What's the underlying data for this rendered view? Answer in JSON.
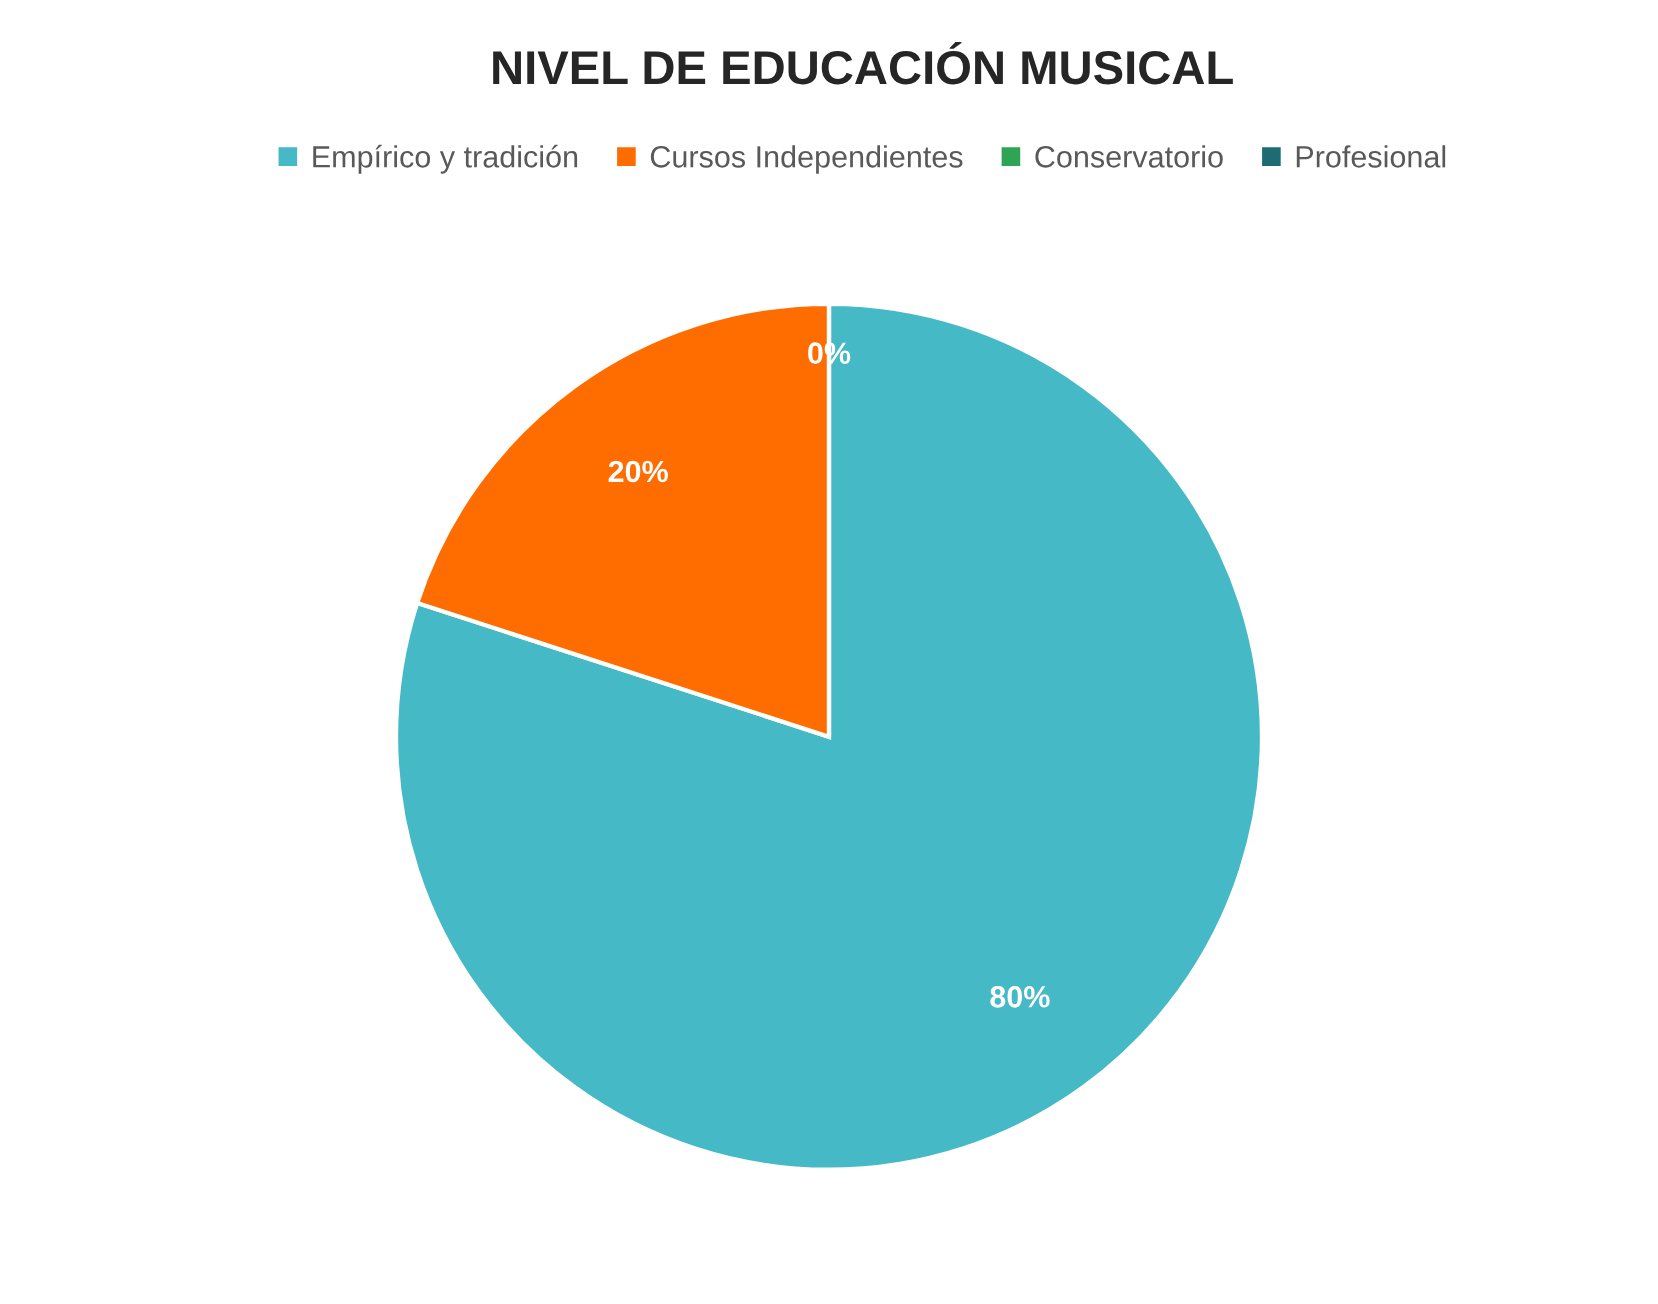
{
  "chart_data": {
    "type": "pie",
    "title": "NIVEL DE EDUCACIÓN MUSICAL",
    "categories": [
      "Empírico y tradición",
      "Cursos Independientes",
      "Conservatorio",
      "Profesional"
    ],
    "values": [
      80,
      20,
      0,
      0
    ],
    "colors": [
      "#45b9c5",
      "#ff6d01",
      "#2fa454",
      "#1e6b73"
    ],
    "value_labels": [
      "80%",
      "20%",
      "0%",
      null
    ],
    "legend": "top"
  }
}
